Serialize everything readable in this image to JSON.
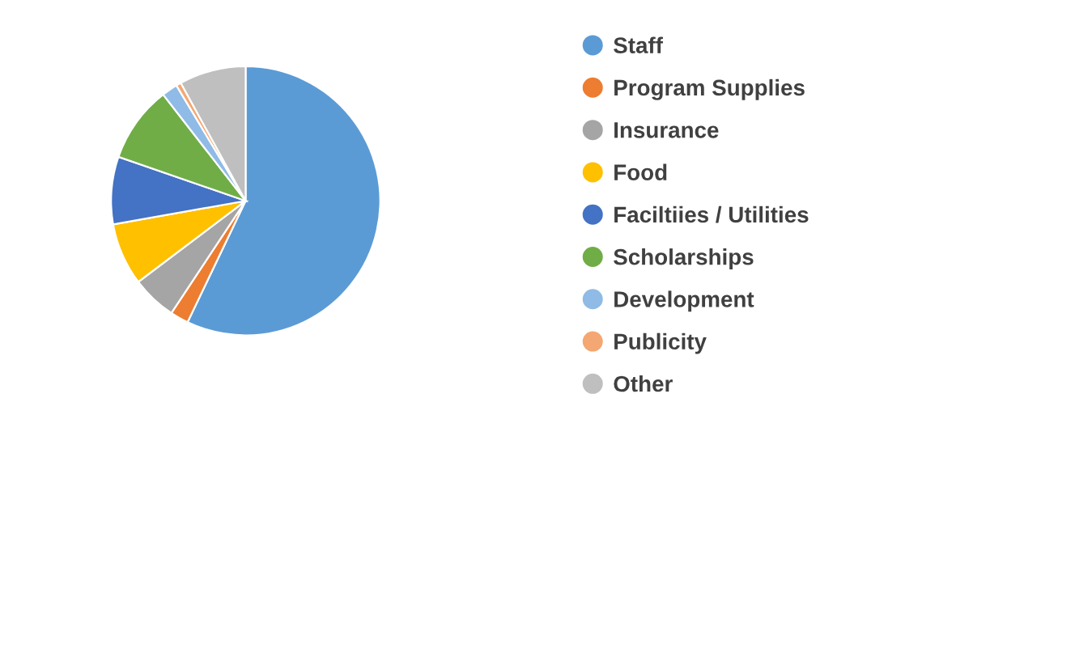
{
  "chart_data": {
    "type": "pie",
    "categories": [
      "Staff",
      "Program Supplies",
      "Insurance",
      "Food",
      "Faciltiies / Utilities",
      "Scholarships",
      "Development",
      "Publicity",
      "Other"
    ],
    "values": [
      57.1,
      2.2,
      5.4,
      7.5,
      8.1,
      9.2,
      1.9,
      0.6,
      8.0
    ],
    "colors": [
      "#5b9bd5",
      "#ed7d31",
      "#a5a5a5",
      "#ffc000",
      "#4472c4",
      "#70ad47",
      "#8fbbe6",
      "#f4a772",
      "#bfbfbf"
    ],
    "legend": "right"
  }
}
